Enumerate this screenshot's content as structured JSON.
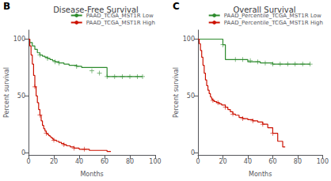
{
  "chart_data": [
    {
      "type": "step",
      "title": "Disease-Free Survival",
      "annotations": [
        "B"
      ],
      "xlabel": "Months",
      "ylabel": "Percent survival",
      "xlim": [
        0,
        100
      ],
      "ylim": [
        -2,
        108
      ],
      "xticks": [
        0,
        20,
        40,
        60,
        80,
        100
      ],
      "yticks": [
        0,
        50,
        100
      ],
      "grid": false,
      "legend": "upper right",
      "series": [
        {
          "name": "PAAD_TCGA_MST1R Low",
          "color": "#2e8b2e",
          "marker": "+",
          "x": [
            0,
            1,
            3,
            5,
            7,
            9,
            11,
            13,
            15,
            17,
            19,
            21,
            24,
            28,
            32,
            38,
            42,
            62,
            90
          ],
          "values": [
            100,
            97,
            94,
            91,
            88,
            86,
            85,
            84,
            83,
            82,
            81,
            80,
            79,
            78,
            77,
            76,
            75,
            67,
            67
          ],
          "censor_x": [
            9,
            15,
            21,
            24,
            38,
            50,
            56,
            62,
            68,
            74,
            80,
            86,
            90
          ],
          "censor_y": [
            86,
            83,
            80,
            79,
            76,
            72,
            70,
            67,
            67,
            67,
            67,
            67,
            67
          ]
        },
        {
          "name": "PAAD_TCGA_MST1R High",
          "color": "#cc1100",
          "marker": "+",
          "x": [
            0,
            1,
            2,
            3,
            4,
            5,
            6,
            7,
            8,
            9,
            10,
            11,
            12,
            13,
            14,
            15,
            16,
            17,
            18,
            19,
            20,
            22,
            24,
            26,
            28,
            30,
            33,
            36,
            40,
            44,
            48,
            55,
            62,
            65
          ],
          "values": [
            100,
            94,
            86,
            78,
            68,
            58,
            50,
            44,
            38,
            33,
            28,
            24,
            21,
            19,
            17,
            16,
            15,
            14,
            13,
            12,
            11,
            10,
            9,
            8,
            7,
            6,
            5,
            4,
            3,
            3,
            2,
            2,
            1,
            1
          ],
          "censor_x": [
            5,
            9,
            14,
            20,
            28,
            36,
            44
          ],
          "censor_y": [
            58,
            33,
            17,
            11,
            7,
            4,
            3
          ]
        }
      ]
    },
    {
      "type": "step",
      "title": "Overall Survival",
      "annotations": [
        "C"
      ],
      "xlabel": "Months",
      "ylabel": "Percent survival",
      "xlim": [
        0,
        100
      ],
      "ylim": [
        -2,
        108
      ],
      "xticks": [
        0,
        20,
        40,
        60,
        80,
        100
      ],
      "yticks": [
        0,
        50,
        100
      ],
      "grid": false,
      "legend": "upper right",
      "series": [
        {
          "name": "PAAD_Percentile_TCGA_MST1R Low",
          "color": "#2e8b2e",
          "marker": "+",
          "x": [
            0,
            5,
            10,
            15,
            18,
            20,
            22,
            30,
            40,
            50,
            60,
            90
          ],
          "values": [
            100,
            100,
            100,
            100,
            100,
            95,
            82,
            82,
            80,
            79,
            78,
            78
          ],
          "censor_x": [
            20,
            30,
            36,
            42,
            48,
            54,
            60,
            66,
            72,
            78,
            84,
            90
          ],
          "censor_y": [
            95,
            82,
            82,
            81,
            80,
            79,
            78,
            78,
            78,
            78,
            78,
            78
          ]
        },
        {
          "name": "PAAD_Percentile_TCGA_MST1R High",
          "color": "#cc1100",
          "marker": "+",
          "x": [
            0,
            1,
            2,
            3,
            4,
            5,
            6,
            7,
            8,
            9,
            10,
            11,
            12,
            13,
            14,
            15,
            16,
            17,
            18,
            19,
            20,
            22,
            24,
            26,
            28,
            30,
            33,
            36,
            40,
            44,
            48,
            52,
            56,
            60,
            64,
            68,
            70
          ],
          "values": [
            100,
            96,
            90,
            84,
            77,
            70,
            64,
            59,
            55,
            52,
            49,
            47,
            46,
            45,
            45,
            44,
            44,
            43,
            43,
            42,
            42,
            40,
            38,
            36,
            34,
            33,
            31,
            30,
            29,
            28,
            27,
            25,
            22,
            17,
            10,
            5,
            5
          ],
          "censor_x": [
            12,
            16,
            22,
            28,
            36,
            44,
            52,
            60
          ],
          "censor_y": [
            46,
            44,
            40,
            34,
            30,
            28,
            25,
            17
          ]
        }
      ]
    }
  ]
}
